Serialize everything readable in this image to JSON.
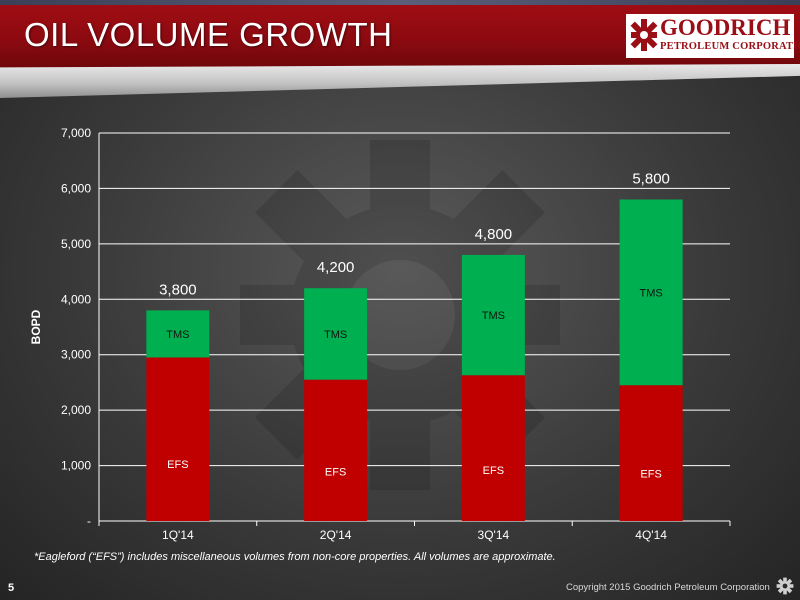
{
  "header": {
    "title": "OIL VOLUME GROWTH",
    "logo_name": "GOODRICH",
    "logo_sub": "PETROLEUM CORPORATION"
  },
  "footer": {
    "note": "*Eagleford (“EFS”) includes miscellaneous volumes from non-core properties. All volumes are approximate.",
    "page_number": "5",
    "copyright": "Copyright 2015 Goodrich Petroleum Corporation"
  },
  "colors": {
    "efs": "#c00000",
    "tms": "#00b050",
    "header_red": "#9a0e15"
  },
  "chart_data": {
    "type": "bar",
    "stacked": true,
    "categories": [
      "1Q'14",
      "2Q'14",
      "3Q'14",
      "4Q'14"
    ],
    "series": [
      {
        "name": "EFS",
        "values": [
          2950,
          2550,
          2630,
          2450
        ]
      },
      {
        "name": "TMS",
        "values": [
          850,
          1650,
          2170,
          3350
        ]
      }
    ],
    "totals": [
      "3,800",
      "4,200",
      "4,800",
      "5,800"
    ],
    "ylabel": "BOPD",
    "ylim": [
      0,
      7000
    ],
    "yticks": [
      0,
      1000,
      2000,
      3000,
      4000,
      5000,
      6000,
      7000
    ],
    "ytick_labels": [
      "-",
      "1,000",
      "2,000",
      "3,000",
      "4,000",
      "5,000",
      "6,000",
      "7,000"
    ],
    "grid": true
  }
}
